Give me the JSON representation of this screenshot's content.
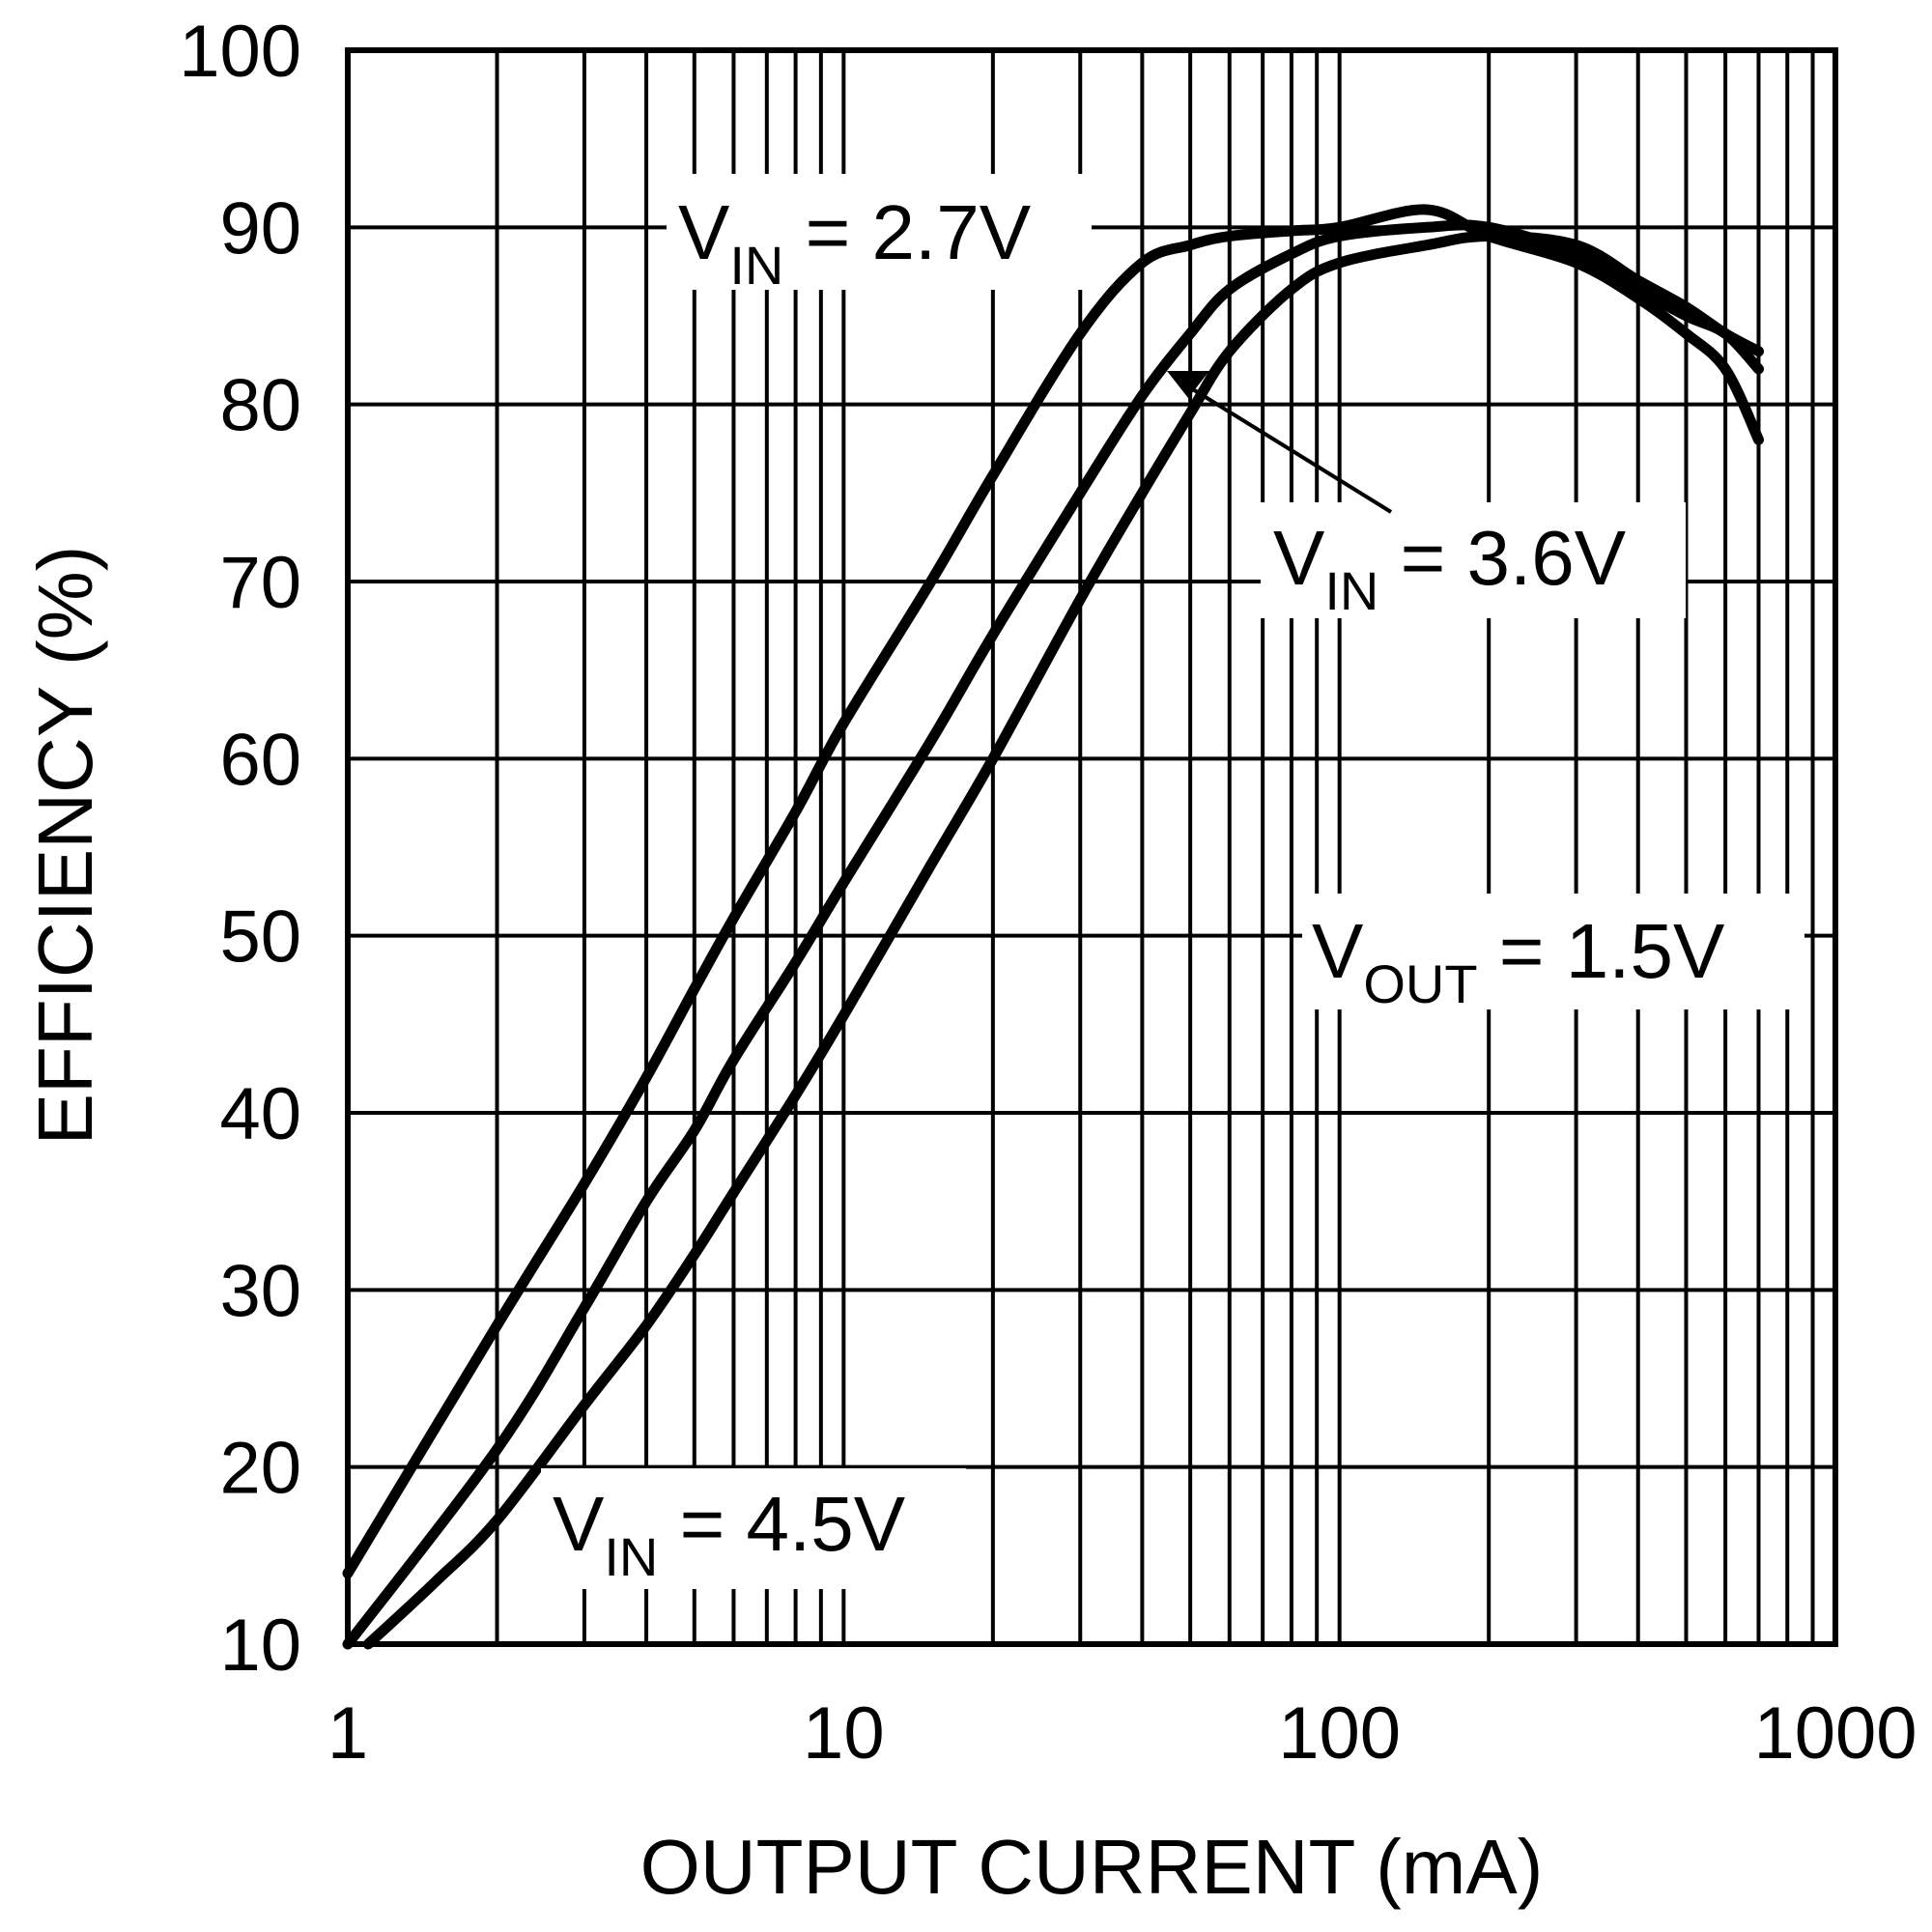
{
  "chart_data": {
    "type": "line",
    "title": "",
    "xlabel": "OUTPUT CURRENT (mA)",
    "ylabel": "EFFICIENCY (%)",
    "xscale": "log",
    "xlim": [
      1,
      1000
    ],
    "ylim": [
      10,
      100
    ],
    "xticks": [
      "1",
      "10",
      "100",
      "1000"
    ],
    "yticks": [
      "10",
      "20",
      "30",
      "40",
      "50",
      "60",
      "70",
      "80",
      "90",
      "100"
    ],
    "grid": true,
    "series": [
      {
        "name": "VIN = 2.7V",
        "x": [
          1,
          2,
          3,
          4,
          5,
          6,
          8,
          10,
          15,
          20,
          30,
          40,
          50,
          60,
          80,
          100,
          150,
          200,
          300,
          400,
          500,
          600,
          700
        ],
        "y": [
          14,
          28,
          36,
          42,
          47,
          51,
          57,
          62,
          70,
          76,
          84,
          88,
          89,
          89.5,
          89.8,
          90,
          91,
          89.5,
          88,
          86,
          84,
          82,
          78
        ]
      },
      {
        "name": "VIN = 3.6V",
        "x": [
          1,
          2,
          3,
          4,
          5,
          6,
          8,
          10,
          15,
          20,
          30,
          40,
          50,
          60,
          80,
          100,
          150,
          200,
          300,
          400,
          500,
          600,
          700
        ],
        "y": [
          10,
          21,
          29,
          35,
          39,
          43,
          48.5,
          53,
          61,
          67,
          75,
          80.5,
          84,
          86.5,
          88.5,
          89.5,
          90,
          90,
          88.5,
          86.5,
          85,
          84,
          82
        ]
      },
      {
        "name": "VIN = 4.5V",
        "x": [
          1.1,
          1.5,
          2,
          3,
          4,
          5,
          6,
          8,
          10,
          15,
          20,
          30,
          40,
          50,
          60,
          80,
          100,
          150,
          200,
          300,
          400,
          500,
          600,
          700
        ],
        "y": [
          10,
          13.5,
          17,
          23.5,
          28,
          32,
          35.5,
          41,
          45.5,
          54,
          60,
          69,
          75,
          79.5,
          83,
          86.5,
          88,
          89,
          89.5,
          89,
          87,
          85.5,
          84,
          83
        ]
      }
    ],
    "annotations": [
      {
        "main": "V",
        "sub": "IN",
        "rest": " = 2.7V"
      },
      {
        "main": "V",
        "sub": "IN",
        "rest": " = 3.6V"
      },
      {
        "main": "V",
        "sub": "OUT",
        "rest": " = 1.5V"
      },
      {
        "main": "V",
        "sub": "IN",
        "rest": " = 4.5V"
      }
    ]
  }
}
